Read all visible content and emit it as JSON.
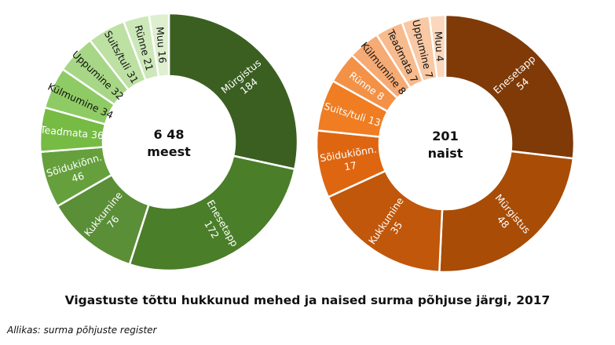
{
  "title": "Vigastuste tõttu hukkunud mehed ja naised surma põhjuse järgi, 2017",
  "source": "Allikas: surma põhjuste register",
  "chart_data": [
    {
      "type": "pie",
      "donut": true,
      "center_label": [
        "6 48",
        "meest"
      ],
      "total": 648,
      "slices": [
        {
          "label": "Mürgistus",
          "value": 184,
          "color": "#3b5f21",
          "text_color": "#ffffff"
        },
        {
          "label": "Enesetapp",
          "value": 172,
          "color": "#4a7e29",
          "text_color": "#ffffff"
        },
        {
          "label": "Kukkumine",
          "value": 76,
          "color": "#5a8e37",
          "text_color": "#ffffff"
        },
        {
          "label": "Sõidukiõnn.",
          "value": 46,
          "color": "#65a03d",
          "text_color": "#ffffff"
        },
        {
          "label": "Teadmata",
          "value": 36,
          "color": "#76bb44",
          "text_color": "#ffffff"
        },
        {
          "label": "Külmumine",
          "value": 34,
          "color": "#8fcb65",
          "text_color": "#111111"
        },
        {
          "label": "Uppumine",
          "value": 32,
          "color": "#a7d786",
          "text_color": "#111111"
        },
        {
          "label": "Suits/tuli",
          "value": 31,
          "color": "#bde0a3",
          "text_color": "#111111"
        },
        {
          "label": "Rünne",
          "value": 21,
          "color": "#cce8b8",
          "text_color": "#111111"
        },
        {
          "label": "Muu",
          "value": 16,
          "color": "#ddefcf",
          "text_color": "#111111"
        }
      ]
    },
    {
      "type": "pie",
      "donut": true,
      "center_label": [
        "201",
        "naist"
      ],
      "total": 201,
      "slices": [
        {
          "label": "Enesetapp",
          "value": 54,
          "color": "#7f3a07",
          "text_color": "#ffffff"
        },
        {
          "label": "Mürgistus",
          "value": 48,
          "color": "#a84c06",
          "text_color": "#ffffff"
        },
        {
          "label": "Kukkumine",
          "value": 35,
          "color": "#c0570a",
          "text_color": "#ffffff"
        },
        {
          "label": "Sõidukiõnn.",
          "value": 17,
          "color": "#de6611",
          "text_color": "#ffffff"
        },
        {
          "label": "Suits/tuli",
          "value": 13,
          "color": "#f07d22",
          "text_color": "#ffffff"
        },
        {
          "label": "Rünne",
          "value": 8,
          "color": "#f39147",
          "text_color": "#ffffff"
        },
        {
          "label": "Külmumine",
          "value": 8,
          "color": "#f6aa74",
          "text_color": "#111111"
        },
        {
          "label": "Teadmata",
          "value": 7,
          "color": "#f8bb8e",
          "text_color": "#111111"
        },
        {
          "label": "Uppumine",
          "value": 7,
          "color": "#f9c8a4",
          "text_color": "#111111"
        },
        {
          "label": "Muu",
          "value": 4,
          "color": "#fbd7bd",
          "text_color": "#111111"
        }
      ]
    }
  ]
}
